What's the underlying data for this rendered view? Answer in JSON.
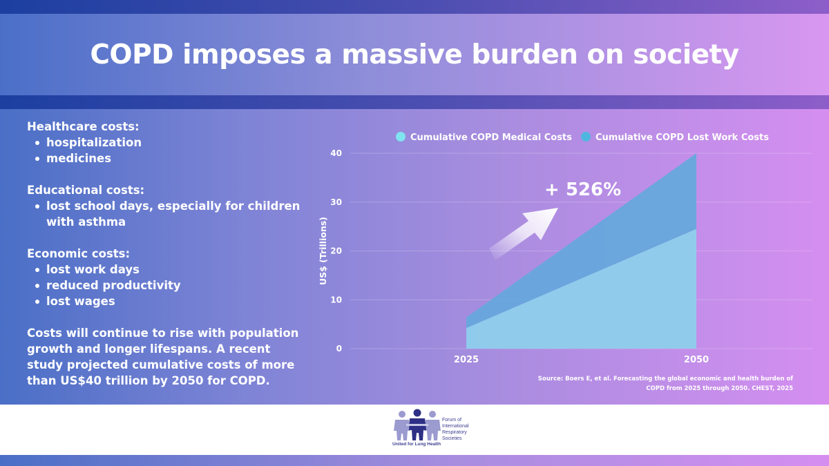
{
  "title": "COPD imposes a massive burden on society",
  "sections": [
    {
      "heading": "Healthcare costs:",
      "items": [
        "hospitalization",
        "medicines"
      ]
    },
    {
      "heading": "Educational costs:",
      "items": [
        "lost school days, especially for children with asthma"
      ]
    },
    {
      "heading": "Economic costs:",
      "items": [
        "lost work days",
        "reduced productivity",
        "lost wages"
      ]
    }
  ],
  "conclusion": "Costs will continue to rise with population growth and longer lifespans. A recent study projected cumulative costs of more than US$40 trillion by 2050 for COPD.",
  "chart_data": {
    "type": "area",
    "stacked": true,
    "x": [
      "2025",
      "2050"
    ],
    "series": [
      {
        "name": "Cumulative COPD Medical Costs",
        "values": [
          4.2,
          24.5
        ],
        "color": "#8ecfec"
      },
      {
        "name": "Cumulative COPD Lost Work Costs",
        "values": [
          2.2,
          15.5
        ],
        "color": "#66a8dc"
      }
    ],
    "ylabel": "US$ (Trillions)",
    "ylim": [
      0,
      40
    ],
    "yticks": [
      0,
      10,
      20,
      30,
      40
    ],
    "legend_position": "top",
    "annotation": "+ 526%",
    "grid": true
  },
  "source": {
    "line1": "Source: Boers E, et al. Forecasting the global economic and health burden of",
    "line2": "COPD from 2025 through 2050. CHEST, 2025"
  },
  "logo": {
    "org_lines": [
      "Forum of",
      "International",
      "Respiratory",
      "Societies"
    ],
    "tagline": "United for Lung Health"
  },
  "colors": {
    "medical": "#8ecfec",
    "lost_work": "#66a8dc",
    "legend_medical_dot": "#7fe3f0",
    "legend_work_dot": "#4fb6e0",
    "logo_dark": "#2e2f85",
    "logo_light": "#9b9bd0"
  }
}
